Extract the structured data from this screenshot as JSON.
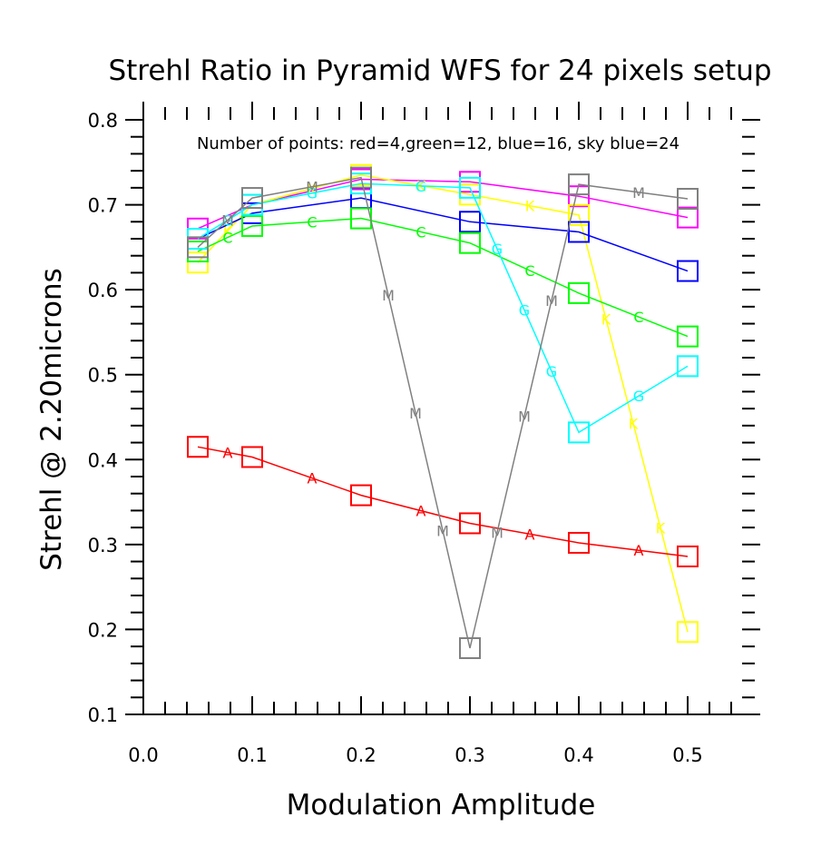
{
  "chart_data": {
    "type": "line",
    "title": "Strehl Ratio in Pyramid WFS for 24 pixels setup",
    "xlabel": "Modulation Amplitude",
    "ylabel": "Strehl @ 2.20microns",
    "annotation": "Number of points: red=4,green=12, blue=16, sky blue=24",
    "xlim": [
      0.0,
      0.55
    ],
    "ylim": [
      0.1,
      0.8
    ],
    "x_ticks": [
      "0.0",
      "0.1",
      "0.2",
      "0.3",
      "0.4",
      "0.5"
    ],
    "y_ticks": [
      "0.1",
      "0.2",
      "0.3",
      "0.4",
      "0.5",
      "0.6",
      "0.7",
      "0.8"
    ],
    "x": [
      0.05,
      0.1,
      0.2,
      0.3,
      0.4,
      0.5
    ],
    "series": [
      {
        "color": "#ff00ff",
        "marker_label": "",
        "values": [
          0.672,
          0.7,
          0.73,
          0.727,
          0.71,
          0.685
        ]
      },
      {
        "color": "#ffff00",
        "marker_label": "K",
        "values": [
          0.632,
          0.7,
          0.735,
          0.712,
          0.688,
          0.197
        ]
      },
      {
        "color": "#0000ff",
        "marker_label": "",
        "values": [
          0.66,
          0.69,
          0.708,
          0.68,
          0.668,
          0.622
        ]
      },
      {
        "color": "#00ff00",
        "marker_label": "C",
        "values": [
          0.645,
          0.675,
          0.684,
          0.655,
          0.596,
          0.545
        ]
      },
      {
        "color": "#00ffff",
        "marker_label": "G",
        "values": [
          0.66,
          0.7,
          0.725,
          0.72,
          0.432,
          0.51
        ]
      },
      {
        "color": "#ff0000",
        "marker_label": "A",
        "values": [
          0.415,
          0.403,
          0.358,
          0.325,
          0.302,
          0.286
        ]
      },
      {
        "color": "#808080",
        "marker_label": "M",
        "values": [
          0.65,
          0.708,
          0.732,
          0.178,
          0.724,
          0.707
        ]
      }
    ]
  }
}
